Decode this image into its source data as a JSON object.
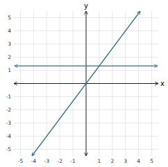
{
  "chart_data": {
    "type": "line",
    "xlabel": "x",
    "ylabel": "y",
    "x": [
      -5.45,
      -4.125,
      4.125,
      5.45
    ],
    "series": [
      {
        "color": "#2e6e8e",
        "values": [
          1.3333333333333333,
          1.3333333333333333,
          1.3333333333333333,
          1.3333333333333333
        ]
      },
      {
        "color": "#2e6e8e",
        "values": [
          null,
          -5.5,
          5.5,
          null
        ]
      }
    ],
    "xlim": [
      -5.5,
      5.5
    ],
    "ylim": [
      -5.5,
      5.5
    ],
    "xticks": [
      -5,
      -4,
      -3,
      -2,
      -1,
      1,
      2,
      3,
      4,
      5
    ],
    "yticks": [
      -5,
      -4,
      -3,
      -2,
      -1,
      1,
      2,
      3,
      4,
      5
    ],
    "grid": true
  }
}
